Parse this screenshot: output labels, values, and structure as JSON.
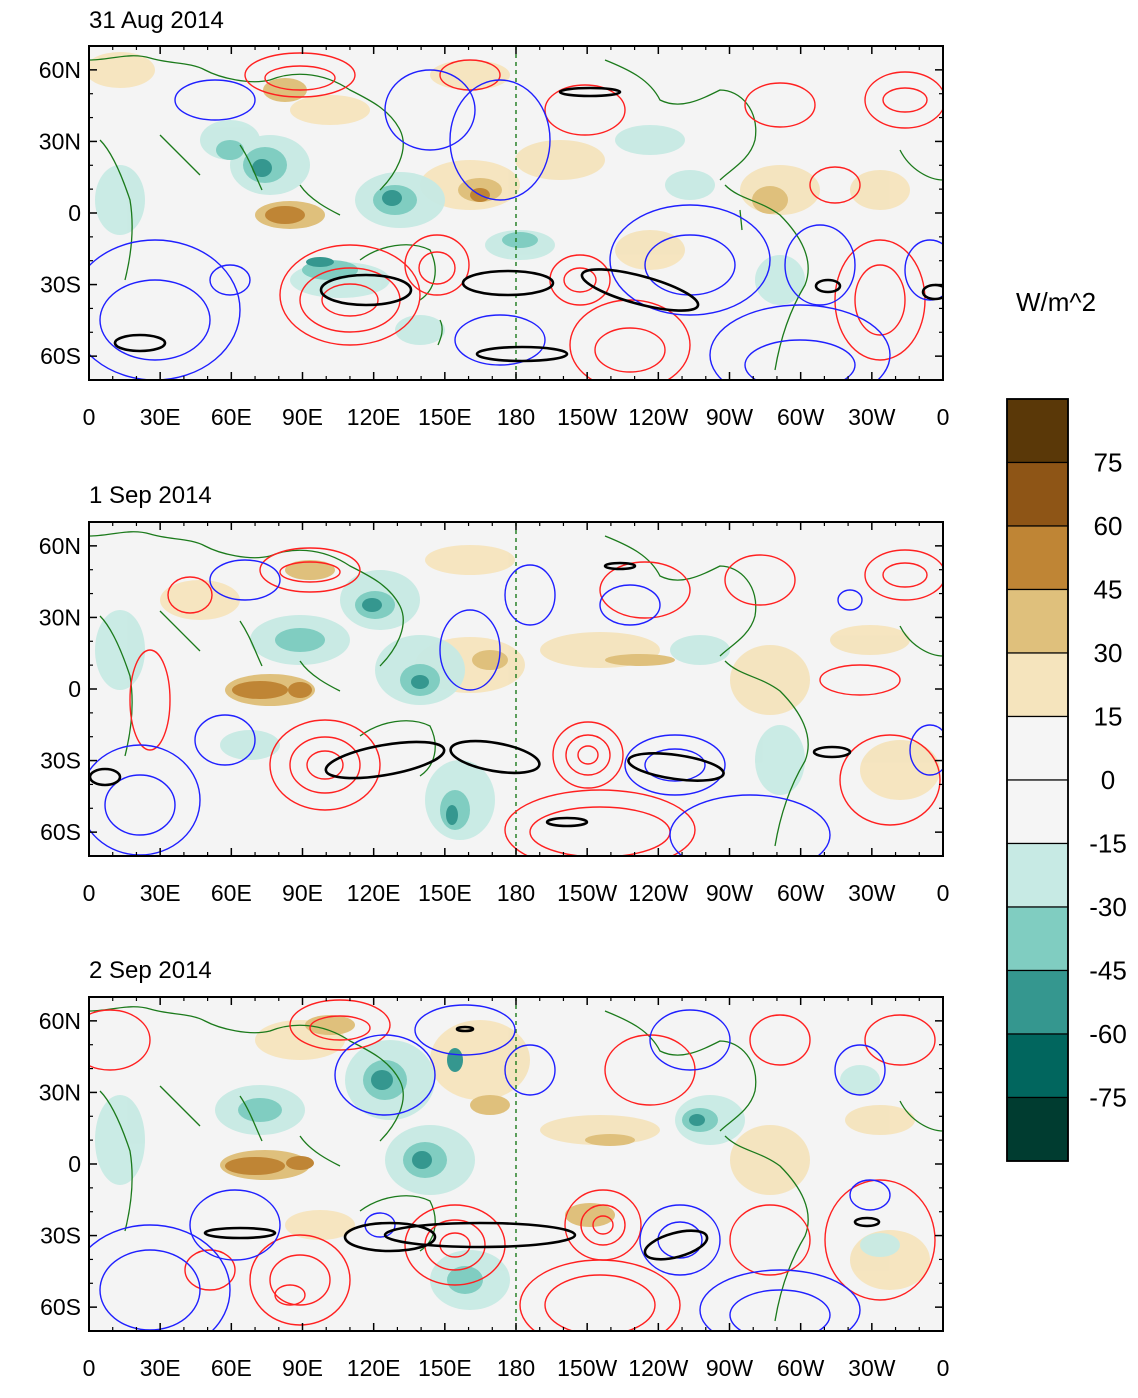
{
  "panels": [
    {
      "title": "31 Aug 2014"
    },
    {
      "title": "1 Sep 2014"
    },
    {
      "title": "2 Sep 2014"
    }
  ],
  "axes": {
    "lon_labels": [
      "0",
      "30E",
      "60E",
      "90E",
      "120E",
      "150E",
      "180",
      "150W",
      "120W",
      "90W",
      "60W",
      "30W",
      "0"
    ],
    "lat_labels": [
      "60N",
      "30N",
      "0",
      "30S",
      "60S"
    ],
    "lat_values": [
      60,
      30,
      0,
      -30,
      -60
    ],
    "lat_range": [
      -70,
      70
    ],
    "lon_range": [
      0,
      360
    ]
  },
  "colorbar": {
    "unit": "W/m^2",
    "tick_labels": [
      "75",
      "60",
      "45",
      "30",
      "15",
      "0",
      "-15",
      "-30",
      "-45",
      "-60",
      "-75"
    ],
    "colors": [
      "#5a3808",
      "#8e5516",
      "#bf8535",
      "#dfc07c",
      "#f5e4bd",
      "#f5f5f5",
      "#f5f5f5",
      "#c7eae4",
      "#80cdc1",
      "#35978f",
      "#01665e",
      "#003c30"
    ]
  },
  "colors": {
    "positive_contour": "#ff2020",
    "negative_contour": "#1f1fff",
    "zero_contour": "#000000",
    "coastline": "#1b7a1b",
    "map_background": "#f4f4f4"
  }
}
